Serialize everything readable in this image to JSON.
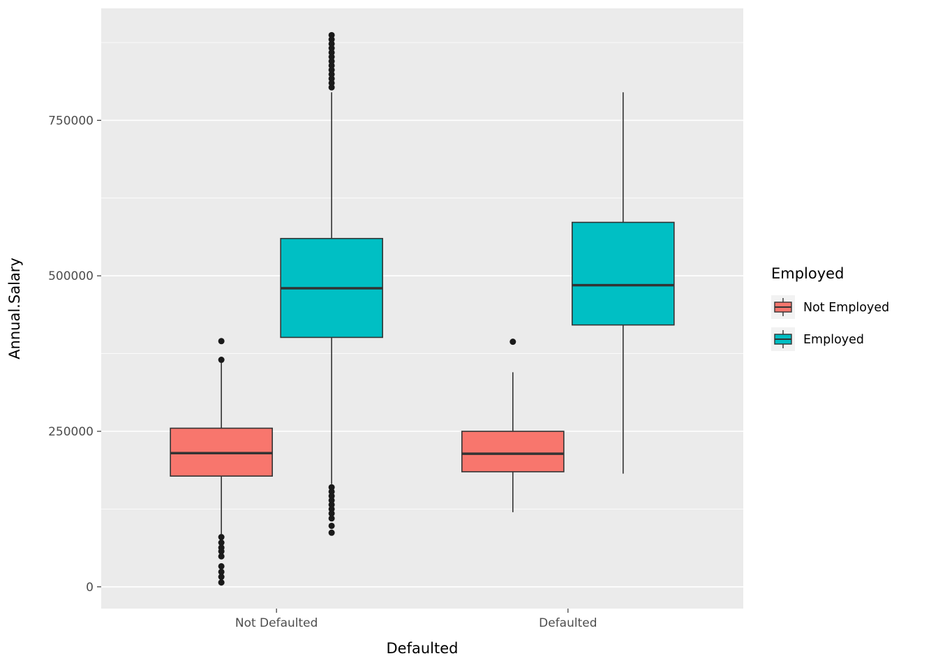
{
  "chart_data": {
    "type": "boxplot",
    "title": "",
    "xlabel": "Defaulted",
    "ylabel": "Annual.Salary",
    "categories": [
      "Not Defaulted",
      "Defaulted"
    ],
    "legend": {
      "title": "Employed",
      "entries": [
        {
          "label": "Not Employed",
          "color": "#F8766D"
        },
        {
          "label": "Employed",
          "color": "#00BFC4"
        }
      ]
    },
    "ylim": [
      -35000,
      930000
    ],
    "yticks": [
      0,
      250000,
      500000,
      750000
    ],
    "ytick_labels": [
      "0",
      "250000",
      "500000",
      "750000"
    ],
    "yminor": [
      125000,
      375000,
      625000,
      875000
    ],
    "panel_bg": "#EBEBEB",
    "grid_color": "#FFFFFF",
    "box_stroke": "#333333",
    "outlier_color": "#1A1A1A",
    "legend_key_bg": "#F2F2F2",
    "series": [
      {
        "name": "Not Employed",
        "color": "#F8766D",
        "boxes": [
          {
            "category": "Not Defaulted",
            "whisker_low": 85000,
            "q1": 178000,
            "median": 215000,
            "q3": 255000,
            "whisker_high": 360000,
            "outliers": [
              395000,
              365000,
              80000,
              71000,
              63000,
              57000,
              49000,
              33000,
              24000,
              16000,
              7000
            ]
          },
          {
            "category": "Defaulted",
            "whisker_low": 120000,
            "q1": 185000,
            "median": 214000,
            "q3": 250000,
            "whisker_high": 345000,
            "outliers": [
              394000
            ]
          }
        ]
      },
      {
        "name": "Employed",
        "color": "#00BFC4",
        "boxes": [
          {
            "category": "Not Defaulted",
            "whisker_low": 165000,
            "q1": 401000,
            "median": 480000,
            "q3": 560000,
            "whisker_high": 795000,
            "outliers": [
              887000,
              880000,
              873000,
              866000,
              859000,
              852000,
              845000,
              838000,
              831000,
              824000,
              817000,
              810000,
              803000,
              160000,
              153000,
              146000,
              139000,
              132000,
              125000,
              118000,
              110000,
              98000,
              87000
            ]
          },
          {
            "category": "Defaulted",
            "whisker_low": 182000,
            "q1": 421000,
            "median": 485000,
            "q3": 586000,
            "whisker_high": 795000,
            "outliers": []
          }
        ]
      }
    ]
  }
}
